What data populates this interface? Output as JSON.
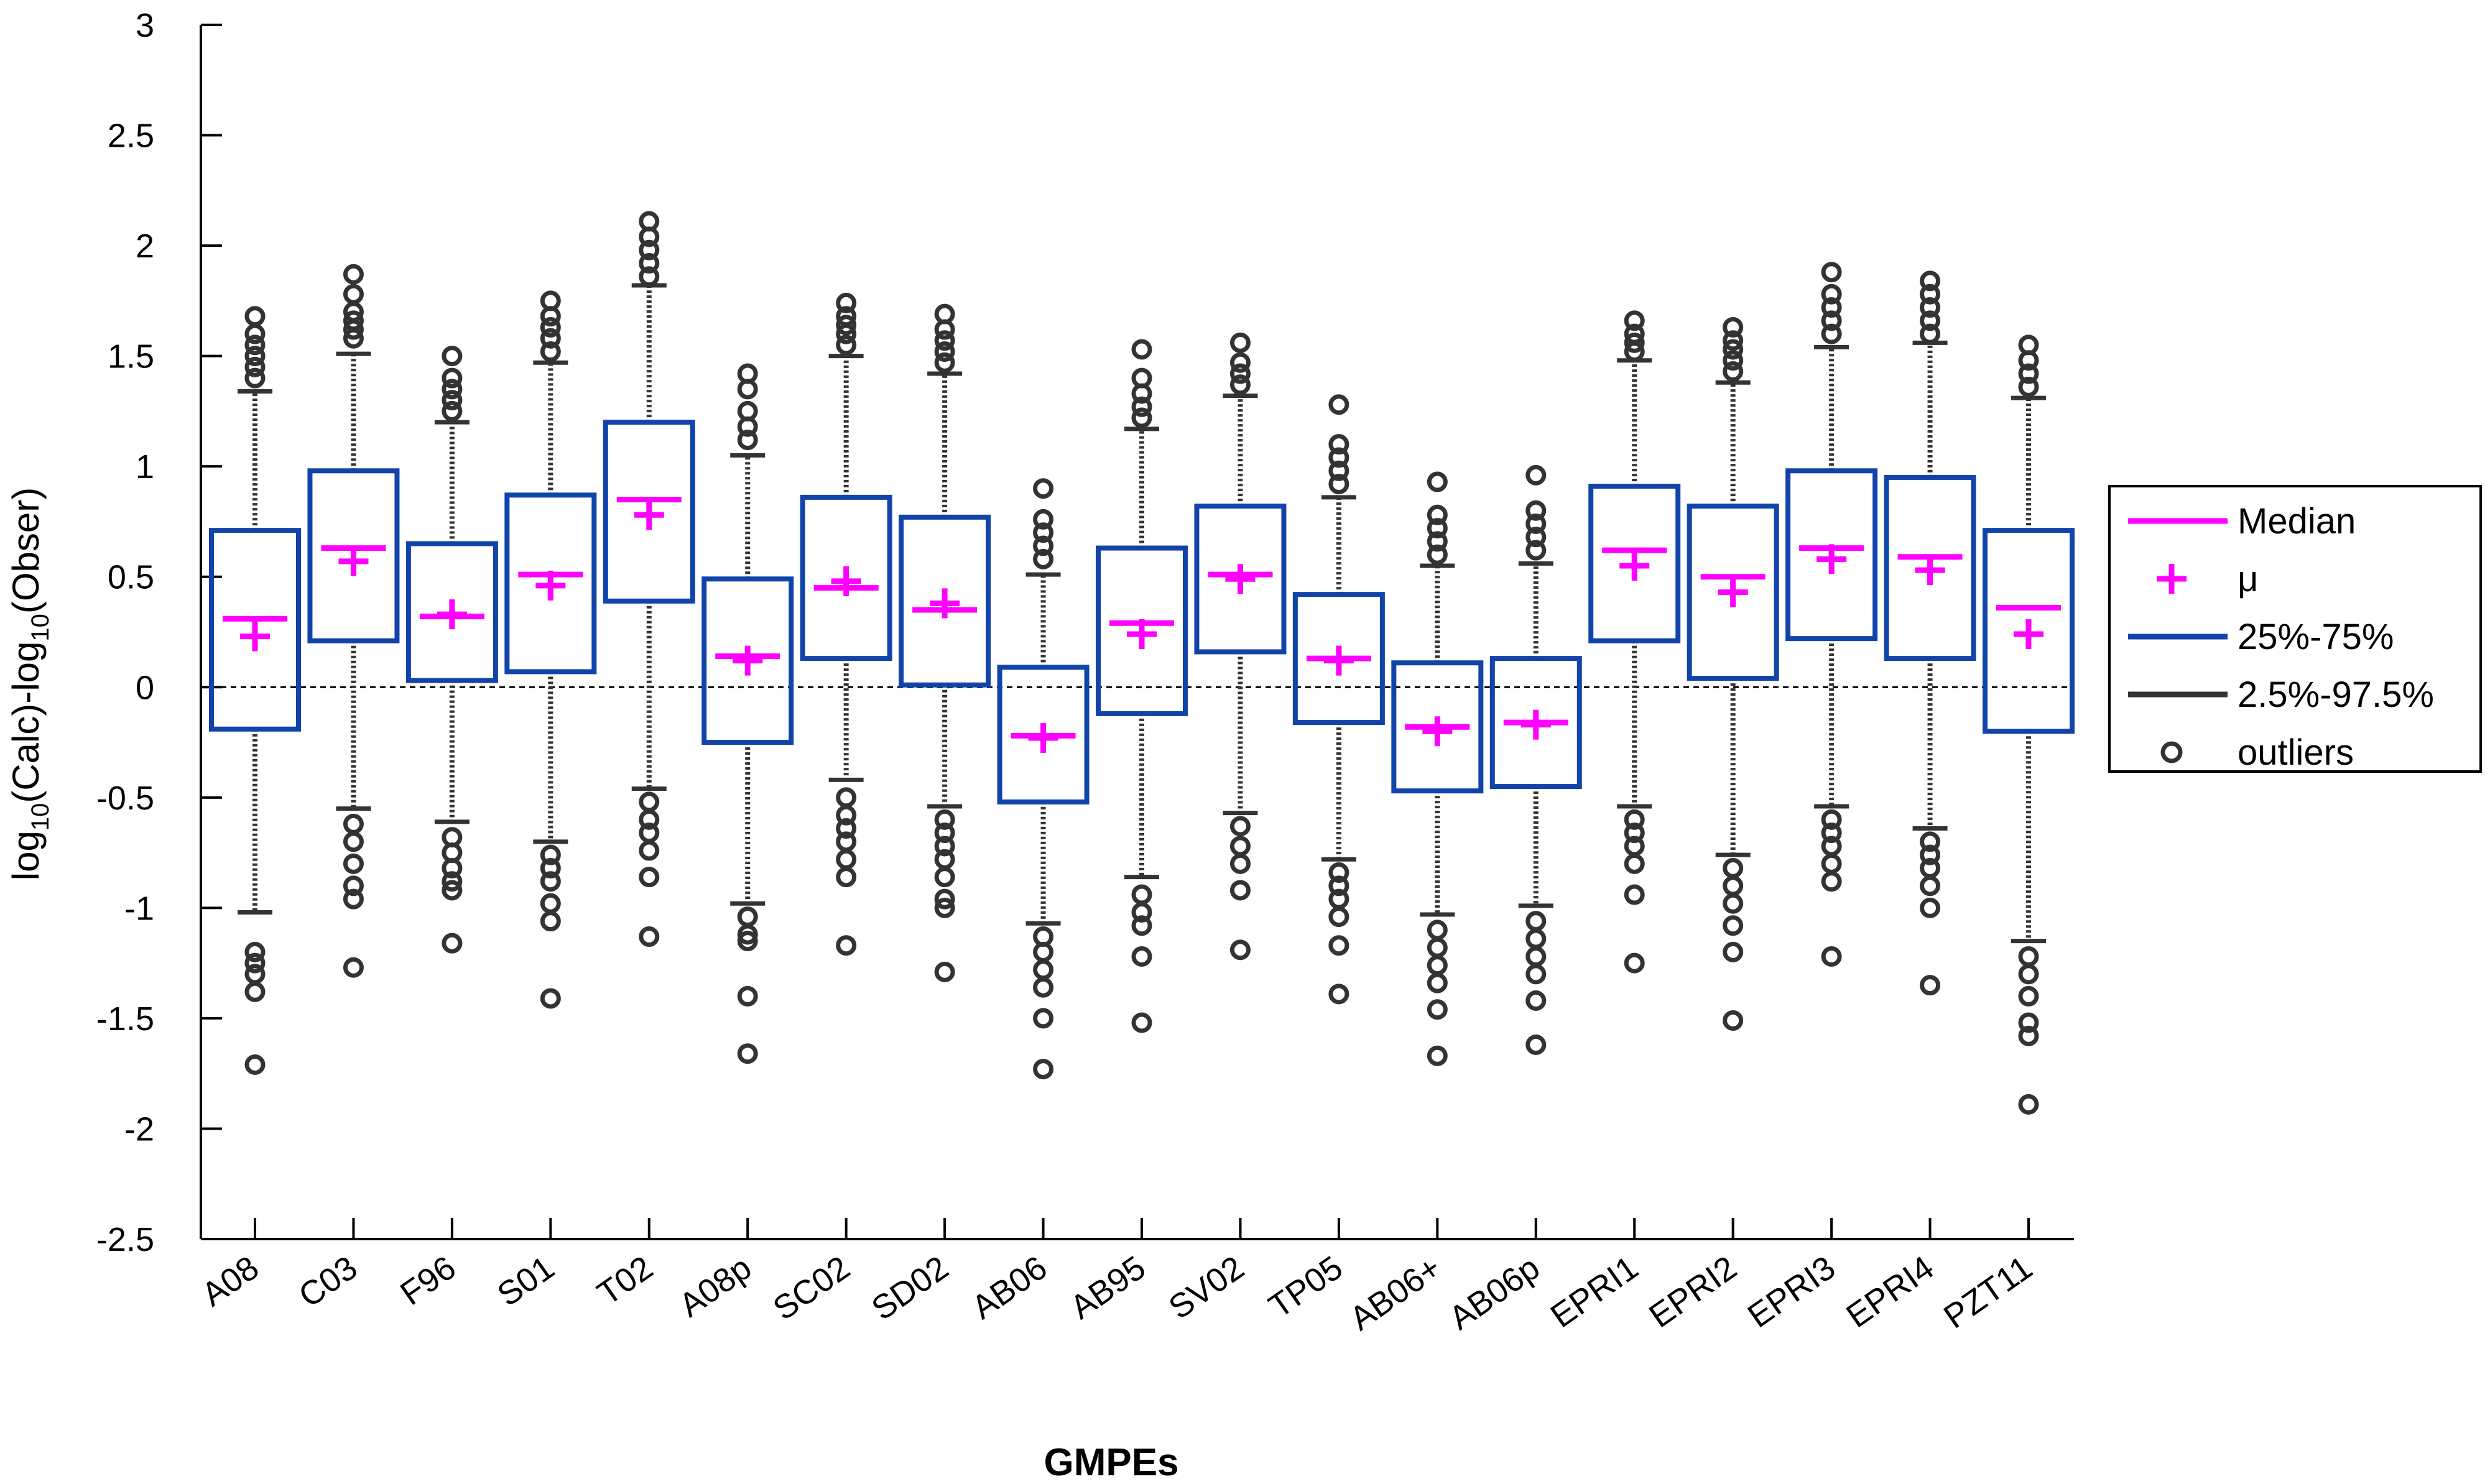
{
  "colors": {
    "median": "#ff00ff",
    "mean": "#ff00ff",
    "box": "#1144aa",
    "whisker": "#333333",
    "outlier": "#333333",
    "axis": "#000000"
  },
  "legend": {
    "items": [
      {
        "label": "Median",
        "symbol": "median-line"
      },
      {
        "label": "μ",
        "symbol": "mean-plus"
      },
      {
        "label": "25%-75%",
        "symbol": "box-line"
      },
      {
        "label": "2.5%-97.5%",
        "symbol": "whisker-line"
      },
      {
        "label": "outliers",
        "symbol": "outlier-circle"
      }
    ],
    "position": "right"
  },
  "chart_data": {
    "type": "box",
    "xlabel": "GMPEs",
    "ylabel_parts": {
      "a": "log",
      "b": "10",
      "c": "(Calc)-log",
      "d": "10",
      "e": "(Obser)"
    },
    "ylim": [
      -2.5,
      3
    ],
    "yticks": [
      -2.5,
      -2,
      -1.5,
      -1,
      -0.5,
      0,
      0.5,
      1,
      1.5,
      2,
      2.5,
      3
    ],
    "ytick_labels": [
      "-2.5",
      "-2",
      "-1.5",
      "-1",
      "-0.5",
      "0",
      "0.5",
      "1",
      "1.5",
      "2",
      "2.5",
      "3"
    ],
    "reference_line": 0,
    "categories": [
      "A08",
      "C03",
      "F96",
      "S01",
      "T02",
      "A08p",
      "SC02",
      "SD02",
      "AB06",
      "AB95",
      "SV02",
      "TP05",
      "AB06+",
      "AB06p",
      "EPRI1",
      "EPRI2",
      "EPRI3",
      "EPRI4",
      "PZT11"
    ],
    "series": [
      {
        "category": "A08",
        "q1": -0.19,
        "median": 0.31,
        "q3": 0.71,
        "mean": 0.23,
        "p2_5": -1.02,
        "p97_5": 1.34,
        "outliers_high": [
          1.4,
          1.45,
          1.5,
          1.55,
          1.6,
          1.68
        ],
        "outliers_low": [
          -1.2,
          -1.25,
          -1.3,
          -1.38,
          -1.71
        ]
      },
      {
        "category": "C03",
        "q1": 0.21,
        "median": 0.63,
        "q3": 0.98,
        "mean": 0.57,
        "p2_5": -0.55,
        "p97_5": 1.51,
        "outliers_high": [
          1.58,
          1.62,
          1.66,
          1.7,
          1.78,
          1.87
        ],
        "outliers_low": [
          -0.62,
          -0.7,
          -0.8,
          -0.9,
          -0.96,
          -1.27
        ]
      },
      {
        "category": "F96",
        "q1": 0.03,
        "median": 0.32,
        "q3": 0.65,
        "mean": 0.33,
        "p2_5": -0.61,
        "p97_5": 1.2,
        "outliers_high": [
          1.25,
          1.3,
          1.35,
          1.4,
          1.5
        ],
        "outliers_low": [
          -0.68,
          -0.75,
          -0.82,
          -0.88,
          -0.92,
          -1.16
        ]
      },
      {
        "category": "S01",
        "q1": 0.07,
        "median": 0.51,
        "q3": 0.87,
        "mean": 0.46,
        "p2_5": -0.7,
        "p97_5": 1.47,
        "outliers_high": [
          1.52,
          1.58,
          1.63,
          1.68,
          1.75
        ],
        "outliers_low": [
          -0.76,
          -0.82,
          -0.88,
          -0.98,
          -1.06,
          -1.41
        ]
      },
      {
        "category": "T02",
        "q1": 0.39,
        "median": 0.85,
        "q3": 1.2,
        "mean": 0.78,
        "p2_5": -0.46,
        "p97_5": 1.82,
        "outliers_high": [
          1.86,
          1.92,
          1.98,
          2.04,
          2.11
        ],
        "outliers_low": [
          -0.52,
          -0.6,
          -0.66,
          -0.74,
          -0.86,
          -1.13
        ]
      },
      {
        "category": "A08p",
        "q1": -0.25,
        "median": 0.14,
        "q3": 0.49,
        "mean": 0.12,
        "p2_5": -0.98,
        "p97_5": 1.05,
        "outliers_high": [
          1.12,
          1.18,
          1.25,
          1.35,
          1.42
        ],
        "outliers_low": [
          -1.04,
          -1.12,
          -1.15,
          -1.4,
          -1.66
        ]
      },
      {
        "category": "SC02",
        "q1": 0.13,
        "median": 0.45,
        "q3": 0.86,
        "mean": 0.48,
        "p2_5": -0.42,
        "p97_5": 1.5,
        "outliers_high": [
          1.55,
          1.6,
          1.64,
          1.68,
          1.74
        ],
        "outliers_low": [
          -0.5,
          -0.58,
          -0.64,
          -0.7,
          -0.78,
          -0.86,
          -1.17
        ]
      },
      {
        "category": "SD02",
        "q1": 0.01,
        "median": 0.35,
        "q3": 0.77,
        "mean": 0.38,
        "p2_5": -0.54,
        "p97_5": 1.42,
        "outliers_high": [
          1.47,
          1.52,
          1.57,
          1.62,
          1.69
        ],
        "outliers_low": [
          -0.6,
          -0.66,
          -0.72,
          -0.78,
          -0.86,
          -0.96,
          -1.0,
          -1.29
        ]
      },
      {
        "category": "AB06",
        "q1": -0.52,
        "median": -0.22,
        "q3": 0.09,
        "mean": -0.23,
        "p2_5": -1.07,
        "p97_5": 0.51,
        "outliers_high": [
          0.58,
          0.64,
          0.7,
          0.76,
          0.9
        ],
        "outliers_low": [
          -1.13,
          -1.2,
          -1.28,
          -1.36,
          -1.5,
          -1.73
        ]
      },
      {
        "category": "AB95",
        "q1": -0.12,
        "median": 0.29,
        "q3": 0.63,
        "mean": 0.24,
        "p2_5": -0.86,
        "p97_5": 1.17,
        "outliers_high": [
          1.22,
          1.27,
          1.33,
          1.4,
          1.53
        ],
        "outliers_low": [
          -0.94,
          -1.02,
          -1.08,
          -1.22,
          -1.52
        ]
      },
      {
        "category": "SV02",
        "q1": 0.16,
        "median": 0.51,
        "q3": 0.82,
        "mean": 0.49,
        "p2_5": -0.57,
        "p97_5": 1.32,
        "outliers_high": [
          1.37,
          1.42,
          1.47,
          1.56
        ],
        "outliers_low": [
          -0.63,
          -0.72,
          -0.8,
          -0.92,
          -1.19
        ]
      },
      {
        "category": "TP05",
        "q1": -0.16,
        "median": 0.13,
        "q3": 0.42,
        "mean": 0.12,
        "p2_5": -0.78,
        "p97_5": 0.86,
        "outliers_high": [
          0.92,
          0.98,
          1.04,
          1.1,
          1.28
        ],
        "outliers_low": [
          -0.84,
          -0.9,
          -0.96,
          -1.04,
          -1.17,
          -1.39
        ]
      },
      {
        "category": "AB06+",
        "q1": -0.47,
        "median": -0.18,
        "q3": 0.11,
        "mean": -0.2,
        "p2_5": -1.03,
        "p97_5": 0.55,
        "outliers_high": [
          0.6,
          0.66,
          0.72,
          0.78,
          0.93
        ],
        "outliers_low": [
          -1.1,
          -1.18,
          -1.26,
          -1.34,
          -1.46,
          -1.67
        ]
      },
      {
        "category": "AB06p",
        "q1": -0.45,
        "median": -0.16,
        "q3": 0.13,
        "mean": -0.17,
        "p2_5": -0.99,
        "p97_5": 0.56,
        "outliers_high": [
          0.62,
          0.68,
          0.74,
          0.8,
          0.96
        ],
        "outliers_low": [
          -1.06,
          -1.14,
          -1.22,
          -1.3,
          -1.42,
          -1.62
        ]
      },
      {
        "category": "EPRI1",
        "q1": 0.21,
        "median": 0.62,
        "q3": 0.91,
        "mean": 0.55,
        "p2_5": -0.54,
        "p97_5": 1.48,
        "outliers_high": [
          1.52,
          1.56,
          1.6,
          1.66
        ],
        "outliers_low": [
          -0.6,
          -0.66,
          -0.72,
          -0.8,
          -0.94,
          -1.25
        ]
      },
      {
        "category": "EPRI2",
        "q1": 0.04,
        "median": 0.5,
        "q3": 0.82,
        "mean": 0.43,
        "p2_5": -0.76,
        "p97_5": 1.38,
        "outliers_high": [
          1.43,
          1.48,
          1.53,
          1.57,
          1.63
        ],
        "outliers_low": [
          -0.82,
          -0.9,
          -0.98,
          -1.08,
          -1.2,
          -1.51
        ]
      },
      {
        "category": "EPRI3",
        "q1": 0.22,
        "median": 0.63,
        "q3": 0.98,
        "mean": 0.58,
        "p2_5": -0.54,
        "p97_5": 1.54,
        "outliers_high": [
          1.6,
          1.66,
          1.72,
          1.78,
          1.88
        ],
        "outliers_low": [
          -0.6,
          -0.66,
          -0.72,
          -0.8,
          -0.88,
          -1.22
        ]
      },
      {
        "category": "EPRI4",
        "q1": 0.13,
        "median": 0.59,
        "q3": 0.95,
        "mean": 0.53,
        "p2_5": -0.64,
        "p97_5": 1.56,
        "outliers_high": [
          1.6,
          1.66,
          1.72,
          1.78,
          1.84
        ],
        "outliers_low": [
          -0.7,
          -0.76,
          -0.82,
          -0.9,
          -1.0,
          -1.35
        ]
      },
      {
        "category": "PZT11",
        "q1": -0.2,
        "median": 0.36,
        "q3": 0.71,
        "mean": 0.24,
        "p2_5": -1.15,
        "p97_5": 1.31,
        "outliers_high": [
          1.36,
          1.42,
          1.48,
          1.55
        ],
        "outliers_low": [
          -1.22,
          -1.3,
          -1.4,
          -1.52,
          -1.58,
          -1.89
        ]
      }
    ]
  }
}
